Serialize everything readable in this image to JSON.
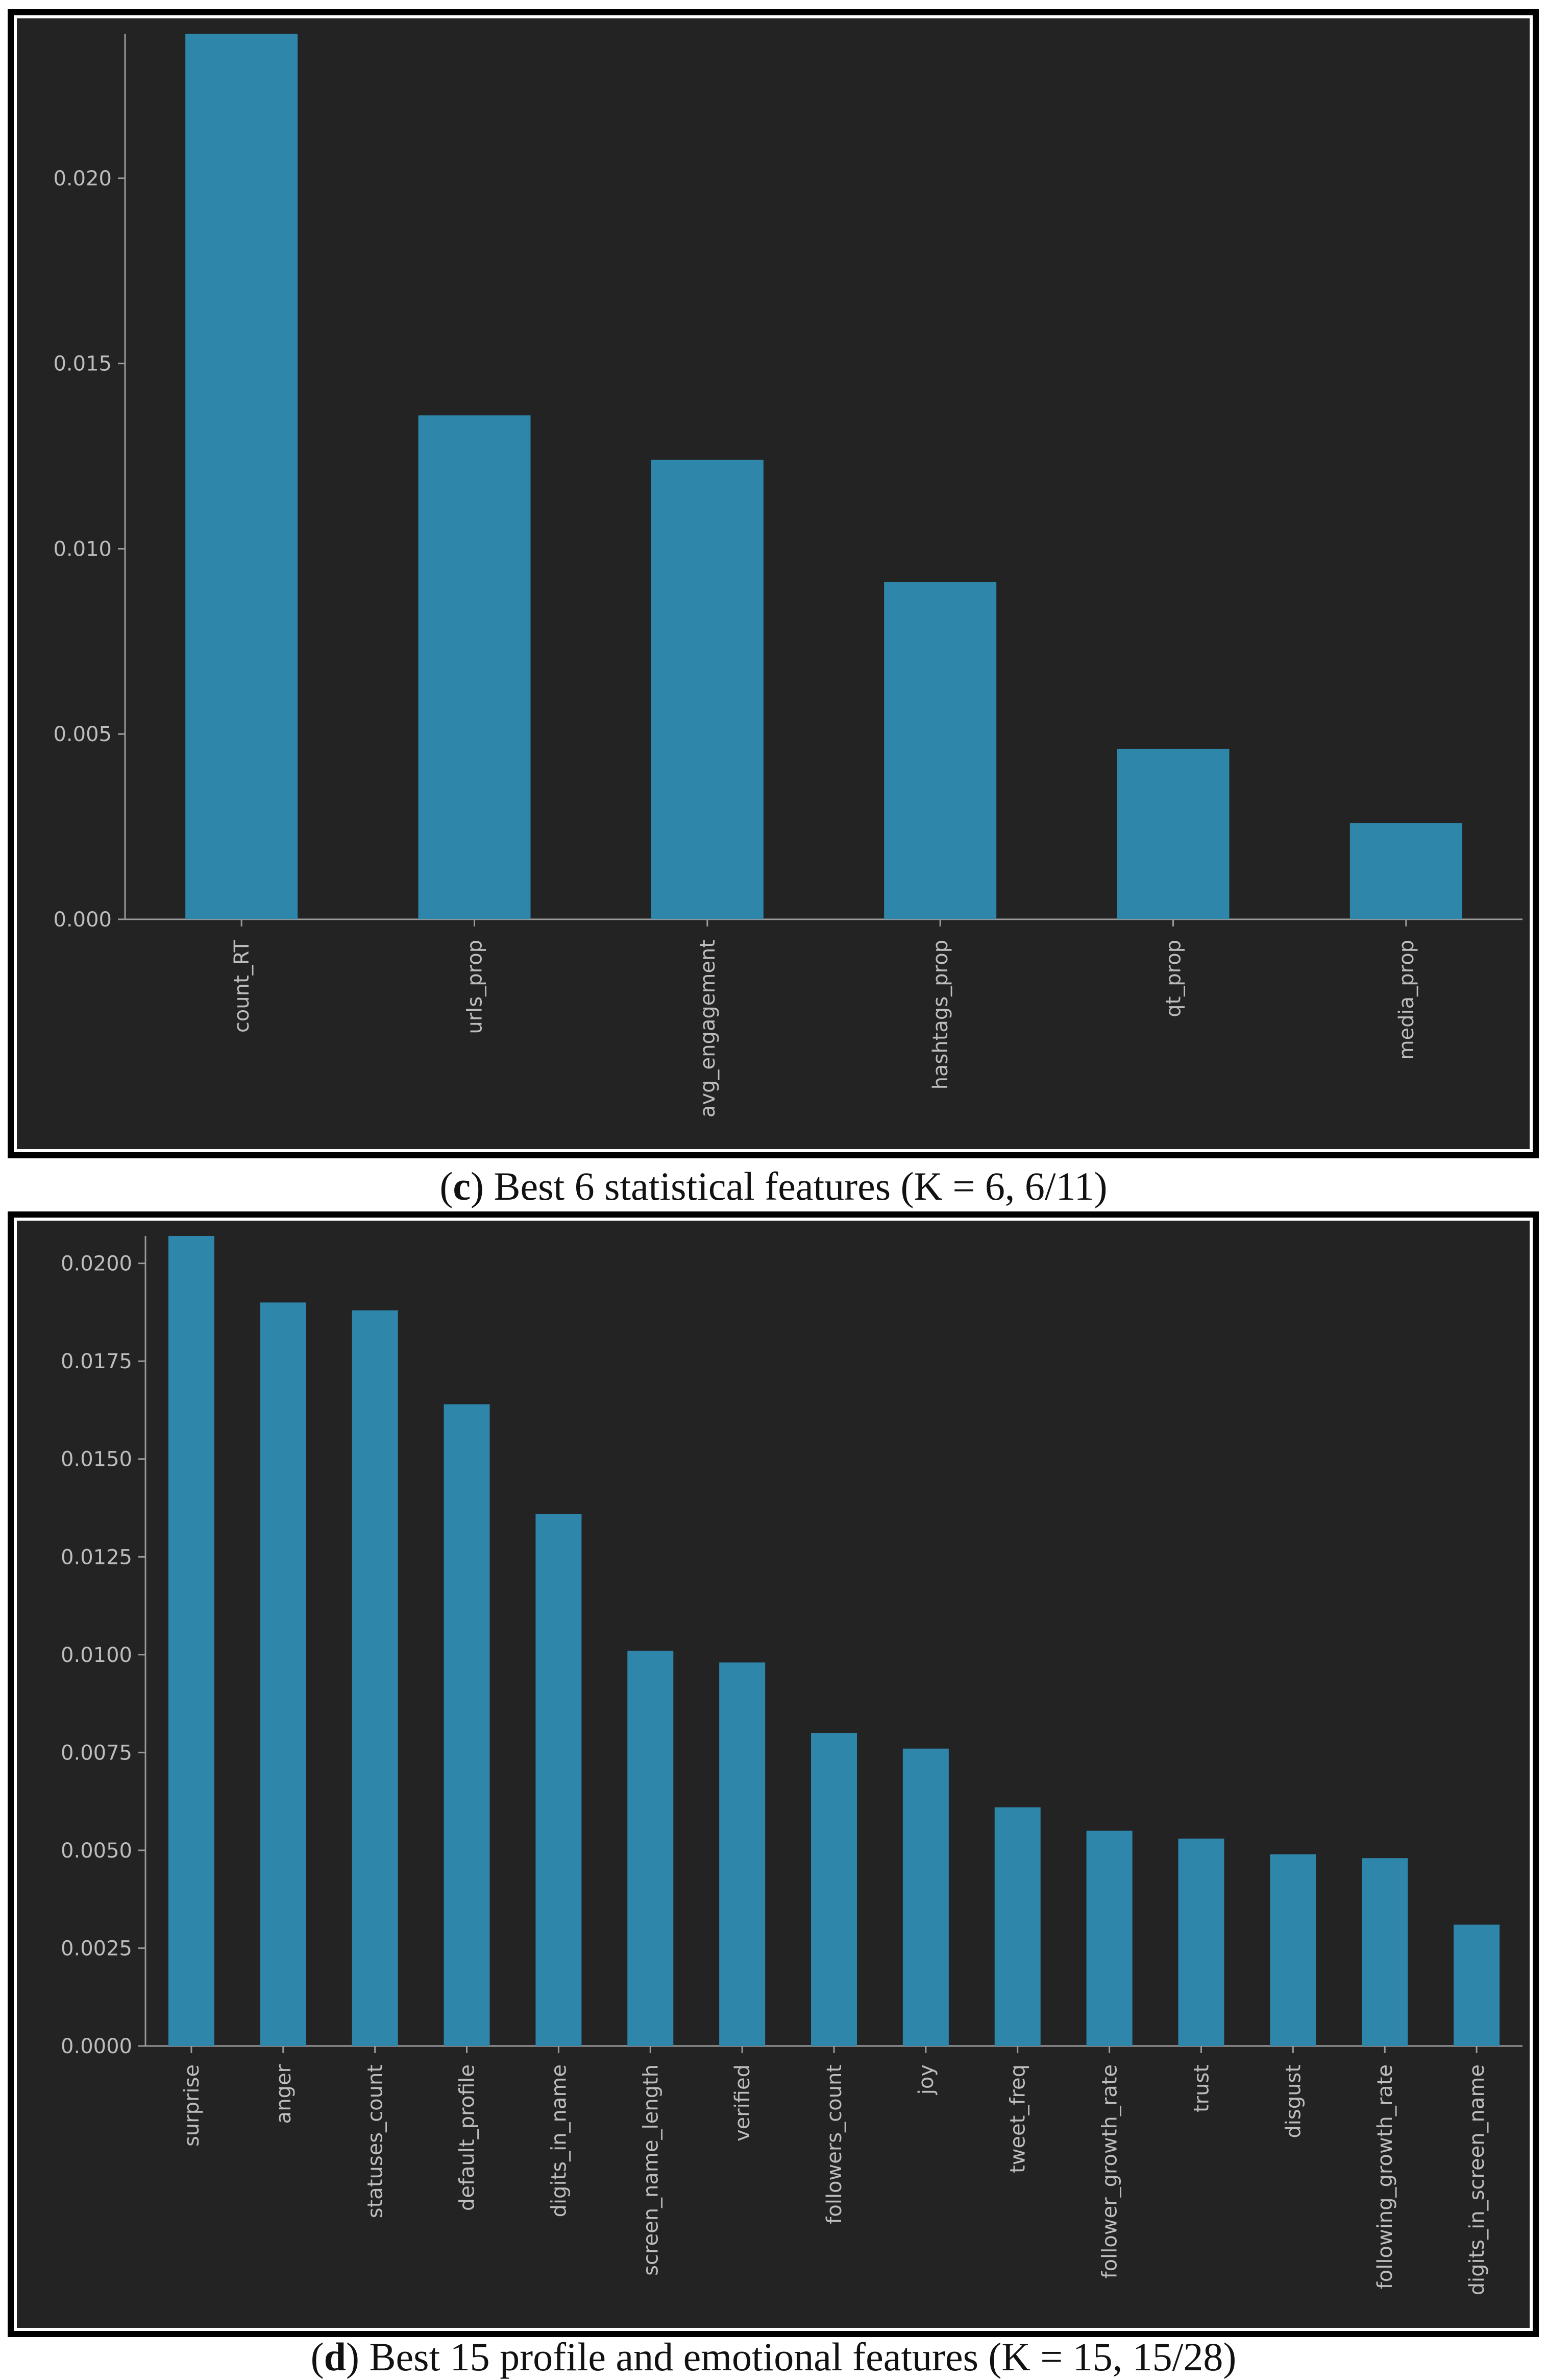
{
  "chart_data": [
    {
      "type": "bar",
      "id": "c",
      "caption_letter": "c",
      "caption_text": ") Best 6 statistical features (K = 6, 6/11)",
      "categories": [
        "count_RT",
        "urls_prop",
        "avg_engagement",
        "hashtags_prop",
        "qt_prop",
        "media_prop"
      ],
      "values": [
        0.0239,
        0.0136,
        0.0124,
        0.0091,
        0.0046,
        0.0026
      ],
      "ylim": [
        0,
        0.0239
      ],
      "yticks": [
        0.0,
        0.005,
        0.01,
        0.015,
        0.02
      ],
      "ytick_labels": [
        "0.000",
        "0.005",
        "0.010",
        "0.015",
        "0.020"
      ],
      "bar_color": "#2e86ab",
      "title": "",
      "xlabel": "",
      "ylabel": ""
    },
    {
      "type": "bar",
      "id": "d",
      "caption_letter": "d",
      "caption_text": ") Best 15 profile and emotional features (K = 15, 15/28)",
      "categories": [
        "surprise",
        "anger",
        "statuses_count",
        "default_profile",
        "digits_in_name",
        "screen_name_length",
        "verified",
        "followers_count",
        "joy",
        "tweet_freq",
        "follower_growth_rate",
        "trust",
        "disgust",
        "following_growth_rate",
        "digits_in_screen_name"
      ],
      "values": [
        0.0207,
        0.019,
        0.0188,
        0.0164,
        0.0136,
        0.0101,
        0.0098,
        0.008,
        0.0076,
        0.0061,
        0.0055,
        0.0053,
        0.0049,
        0.0048,
        0.0031
      ],
      "ylim": [
        0,
        0.0207
      ],
      "yticks": [
        0.0,
        0.0025,
        0.005,
        0.0075,
        0.01,
        0.0125,
        0.015,
        0.0175,
        0.02
      ],
      "ytick_labels": [
        "0.0000",
        "0.0025",
        "0.0050",
        "0.0075",
        "0.0100",
        "0.0125",
        "0.0150",
        "0.0175",
        "0.0200"
      ],
      "bar_color": "#2e86ab",
      "title": "",
      "xlabel": "",
      "ylabel": ""
    }
  ]
}
